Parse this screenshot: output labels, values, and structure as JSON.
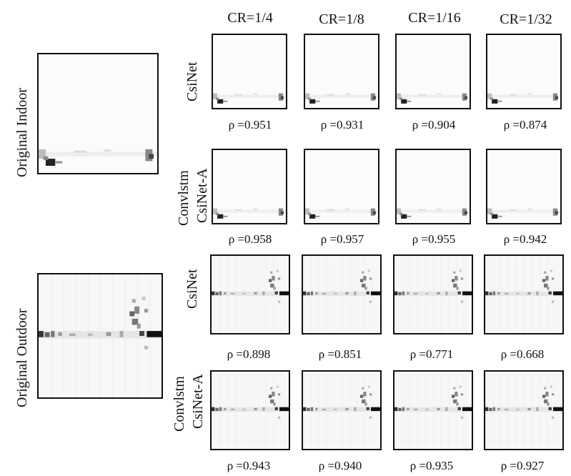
{
  "columns": [
    "CR=1/4",
    "CR=1/8",
    "CR=1/16",
    "CR=1/32"
  ],
  "row_labels": {
    "original_indoor": "Original Indoor",
    "original_outdoor": "Original Outdoor",
    "csinet": "CsiNet",
    "convlstm_line1": "Convlstm",
    "convlstm_line2": "CsiNet-A"
  },
  "indoor": {
    "csinet_rho": [
      "ρ =0.951",
      "ρ =0.931",
      "ρ =0.904",
      "ρ =0.874"
    ],
    "convlstm_rho": [
      "ρ =0.958",
      "ρ =0.957",
      "ρ =0.955",
      "ρ =0.942"
    ]
  },
  "outdoor": {
    "csinet_rho": [
      "ρ =0.898",
      "ρ =0.851",
      "ρ =0.771",
      "ρ =0.668"
    ],
    "convlstm_rho": [
      "ρ =0.943",
      "ρ =0.940",
      "ρ =0.935",
      "ρ =0.927"
    ]
  }
}
